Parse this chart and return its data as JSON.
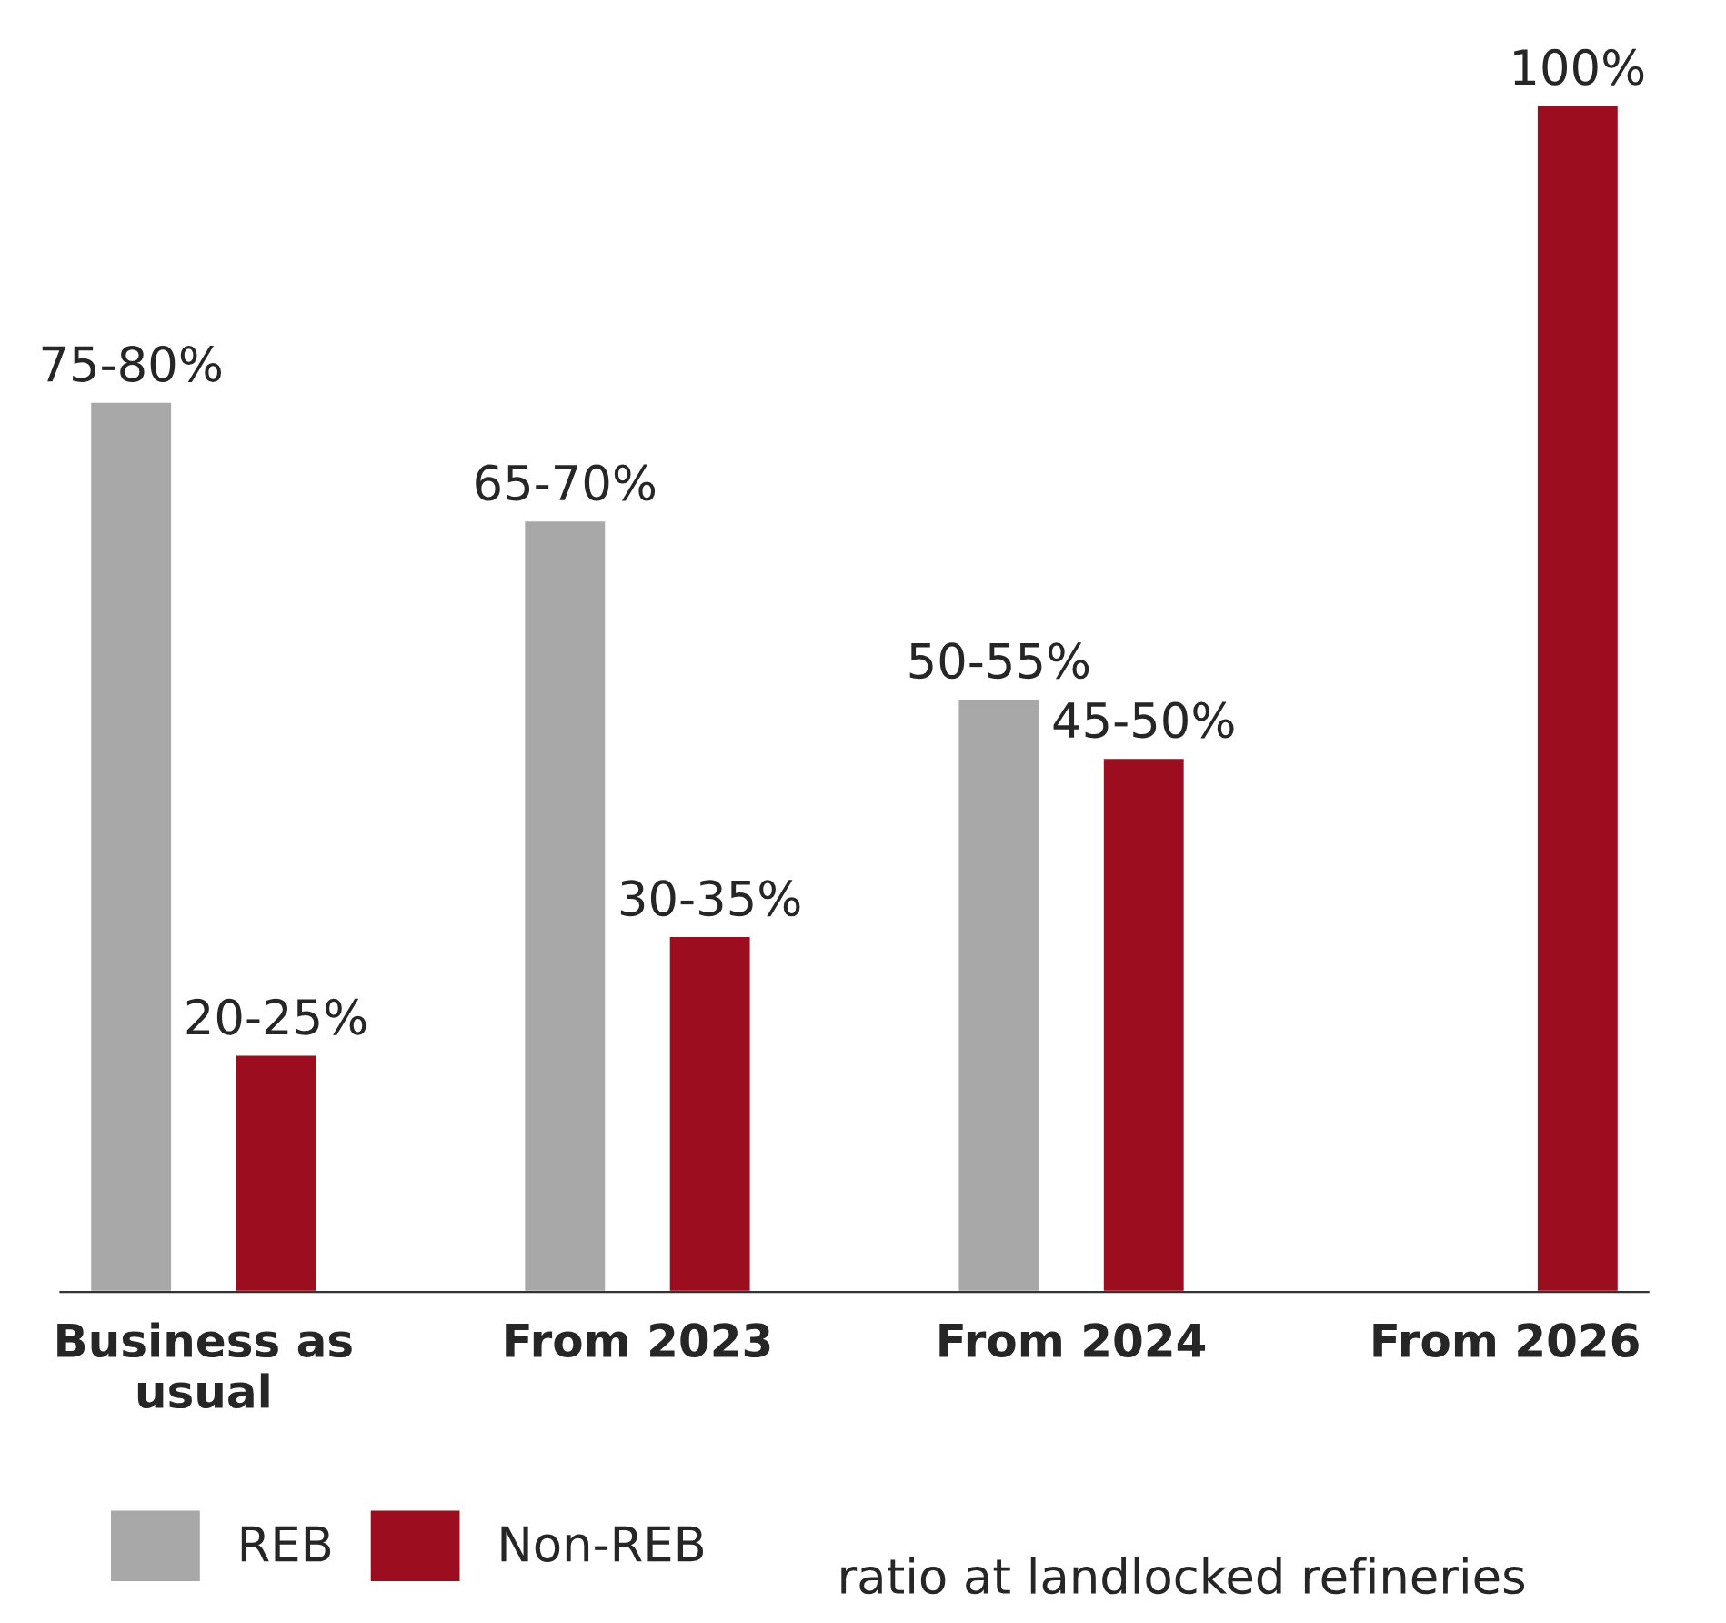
{
  "chart_data": {
    "type": "bar",
    "tick_labels": "x",
    "categories": [
      "Business as usual",
      "From 2023",
      "From 2024",
      "From 2026"
    ],
    "series": [
      {
        "name": "REB",
        "color": "#a8a8a8",
        "values": [
          75,
          65,
          50,
          null
        ],
        "value_labels": [
          "75-80%",
          "65-70%",
          "50-55%",
          null
        ]
      },
      {
        "name": "Non-REB",
        "color": "#9b0d1f",
        "values": [
          20,
          30,
          45,
          100
        ],
        "value_labels": [
          "20-25%",
          "30-35%",
          "45-50%",
          "100%"
        ]
      }
    ],
    "legend": "bottom",
    "annotations": [
      "ratio at landlocked refineries"
    ]
  }
}
